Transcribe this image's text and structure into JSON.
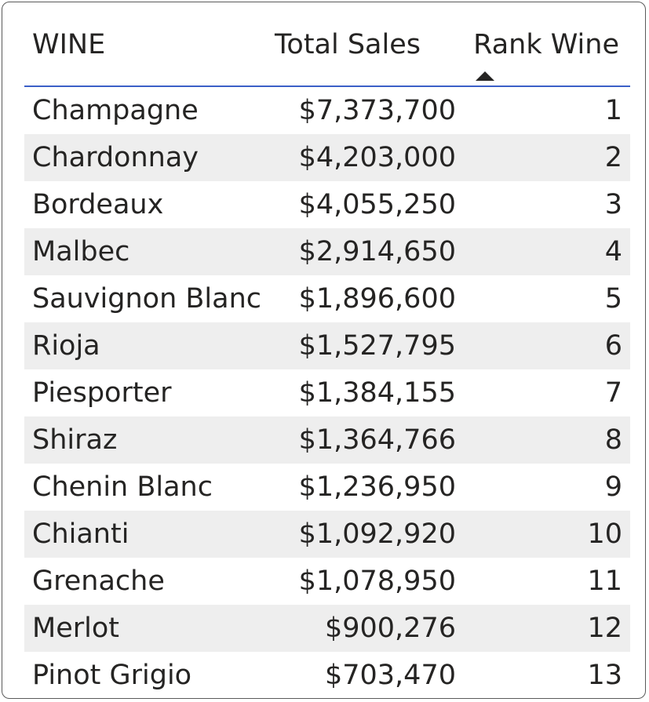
{
  "table": {
    "columns": {
      "wine": "WINE",
      "sales": "Total Sales",
      "rank": "Rank Wine"
    },
    "sort": {
      "column": "Rank Wine",
      "direction": "ascending",
      "icon": "sort-ascending-triangle"
    },
    "rows": [
      {
        "wine": "Champagne",
        "sales": "$7,373,700",
        "rank": "1"
      },
      {
        "wine": "Chardonnay",
        "sales": "$4,203,000",
        "rank": "2"
      },
      {
        "wine": "Bordeaux",
        "sales": "$4,055,250",
        "rank": "3"
      },
      {
        "wine": "Malbec",
        "sales": "$2,914,650",
        "rank": "4"
      },
      {
        "wine": "Sauvignon Blanc",
        "sales": "$1,896,600",
        "rank": "5"
      },
      {
        "wine": "Rioja",
        "sales": "$1,527,795",
        "rank": "6"
      },
      {
        "wine": "Piesporter",
        "sales": "$1,384,155",
        "rank": "7"
      },
      {
        "wine": "Shiraz",
        "sales": "$1,364,766",
        "rank": "8"
      },
      {
        "wine": "Chenin Blanc",
        "sales": "$1,236,950",
        "rank": "9"
      },
      {
        "wine": "Chianti",
        "sales": "$1,092,920",
        "rank": "10"
      },
      {
        "wine": "Grenache",
        "sales": "$1,078,950",
        "rank": "11"
      },
      {
        "wine": "Merlot",
        "sales": "$900,276",
        "rank": "12"
      },
      {
        "wine": "Pinot Grigio",
        "sales": "$703,470",
        "rank": "13"
      }
    ]
  },
  "colors": {
    "accent": "#3b5fc8",
    "text": "#252423",
    "alt_row": "#eeeeee",
    "border": "#5a5a5a"
  }
}
